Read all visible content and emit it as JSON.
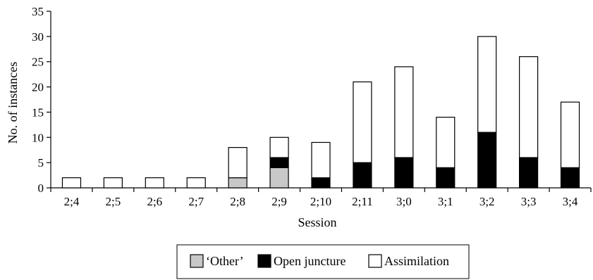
{
  "chart_data": {
    "type": "bar",
    "stacked": true,
    "categories": [
      "2;4",
      "2;5",
      "2;6",
      "2;7",
      "2;8",
      "2;9",
      "2;10",
      "2;11",
      "3;0",
      "3;1",
      "3;2",
      "3;3",
      "3;4"
    ],
    "series": [
      {
        "name": "‘Other’",
        "color": "#c8c8c8",
        "values": [
          0,
          0,
          0,
          0,
          2,
          4,
          0,
          0,
          0,
          0,
          0,
          0,
          0
        ]
      },
      {
        "name": "Open juncture",
        "color": "#000000",
        "values": [
          0,
          0,
          0,
          0,
          0,
          2,
          2,
          5,
          6,
          4,
          11,
          6,
          4
        ]
      },
      {
        "name": "Assimilation",
        "color": "#ffffff",
        "values": [
          2,
          2,
          2,
          2,
          6,
          4,
          7,
          16,
          18,
          10,
          19,
          20,
          13
        ]
      }
    ],
    "xlabel": "Session",
    "ylabel": "No. of instances",
    "ylim": [
      0,
      35
    ],
    "yticks": [
      0,
      5,
      10,
      15,
      20,
      25,
      30,
      35
    ],
    "grid": false,
    "legend_position": "bottom"
  }
}
